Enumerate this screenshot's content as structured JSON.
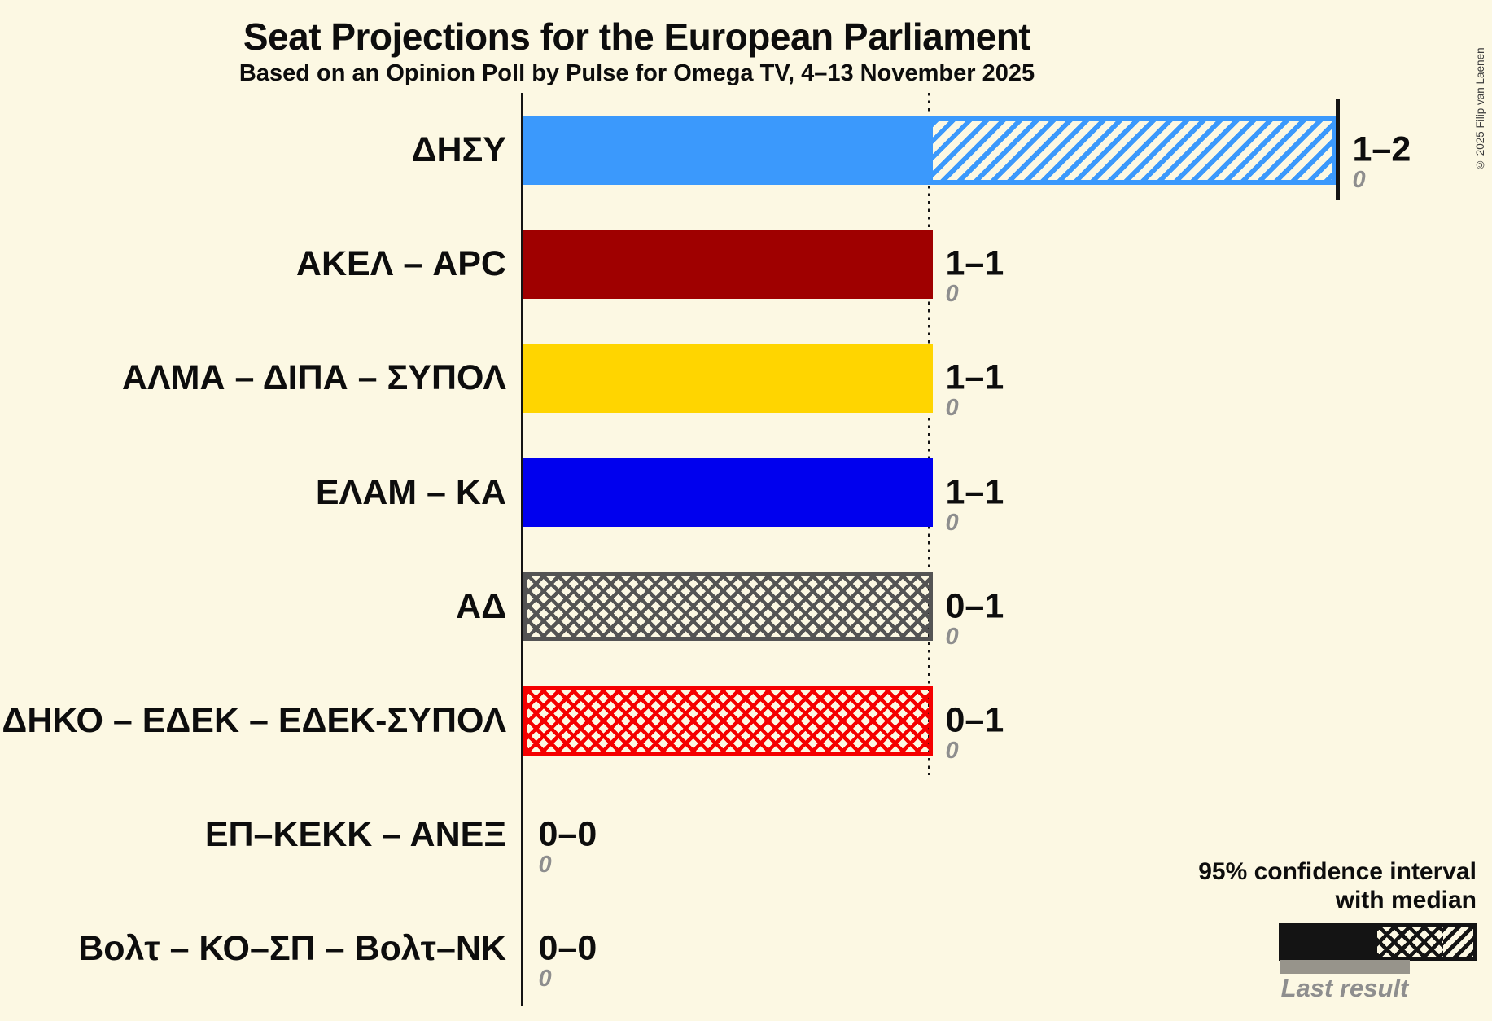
{
  "title": "Seat Projections for the European Parliament",
  "subtitle": "Based on an Opinion Poll by Pulse for Omega TV, 4–13 November 2025",
  "copyright": "© 2025 Filip van Laenen",
  "colors": {
    "background": "#FCF8E3",
    "text": "#0D0D0D",
    "muted_text": "#8E8E8E",
    "axis": "#141414",
    "last_result_bar": "#97948B"
  },
  "chart_data": {
    "type": "bar",
    "orientation": "horizontal",
    "unit": "seats",
    "x_axis": {
      "min": 0,
      "max": 2,
      "gridline_at": 1,
      "grid": "dotted vertical line at 1 seat"
    },
    "legend": {
      "line1": "95% confidence interval",
      "line2": "with median",
      "last_result": "Last result"
    },
    "parties": [
      {
        "name": "ΔΗΣΥ",
        "range_label": "1–2",
        "ci_low": 1,
        "ci_high": 2,
        "median": 2,
        "last_result": 0,
        "last_result_label": "0",
        "color": "#3B99FC",
        "segments": [
          {
            "style": "solid",
            "from": 0,
            "to": 1
          },
          {
            "style": "diagonal",
            "from": 1,
            "to": 2
          }
        ],
        "median_line_at": 2
      },
      {
        "name": "ΑΚΕΛ – APC",
        "range_label": "1–1",
        "ci_low": 1,
        "ci_high": 1,
        "median": 1,
        "last_result": 0,
        "last_result_label": "0",
        "color": "#9F0000",
        "segments": [
          {
            "style": "solid",
            "from": 0,
            "to": 1
          }
        ]
      },
      {
        "name": "ΑΛΜΑ – ΔΙΠΑ – ΣΥΠΟΛ",
        "range_label": "1–1",
        "ci_low": 1,
        "ci_high": 1,
        "median": 1,
        "last_result": 0,
        "last_result_label": "0",
        "color": "#FFD500",
        "segments": [
          {
            "style": "solid",
            "from": 0,
            "to": 1
          }
        ]
      },
      {
        "name": "ΕΛΑΜ – ΚΑ",
        "range_label": "1–1",
        "ci_low": 1,
        "ci_high": 1,
        "median": 1,
        "last_result": 0,
        "last_result_label": "0",
        "color": "#0000EE",
        "segments": [
          {
            "style": "solid",
            "from": 0,
            "to": 1
          }
        ]
      },
      {
        "name": "ΑΔ",
        "range_label": "0–1",
        "ci_low": 0,
        "ci_high": 1,
        "median": 0,
        "last_result": 0,
        "last_result_label": "0",
        "color": "#545454",
        "segments": [
          {
            "style": "cross",
            "from": 0,
            "to": 1
          }
        ]
      },
      {
        "name": "ΔΗΚΟ – ΕΔΕΚ – ΕΔΕΚ-ΣΥΠΟΛ",
        "range_label": "0–1",
        "ci_low": 0,
        "ci_high": 1,
        "median": 0,
        "last_result": 0,
        "last_result_label": "0",
        "color": "#F50000",
        "segments": [
          {
            "style": "cross",
            "from": 0,
            "to": 1
          }
        ]
      },
      {
        "name": "ΕΠ–ΚΕΚΚ – ΑΝΕΞ",
        "range_label": "0–0",
        "ci_low": 0,
        "ci_high": 0,
        "median": 0,
        "last_result": 0,
        "last_result_label": "0",
        "color": "#0D0D0D",
        "segments": []
      },
      {
        "name": "Βολτ – ΚΟ–ΣΠ – Βολτ–ΝΚ",
        "range_label": "0–0",
        "ci_low": 0,
        "ci_high": 0,
        "median": 0,
        "last_result": 0,
        "last_result_label": "0",
        "color": "#0D0D0D",
        "segments": []
      }
    ]
  }
}
